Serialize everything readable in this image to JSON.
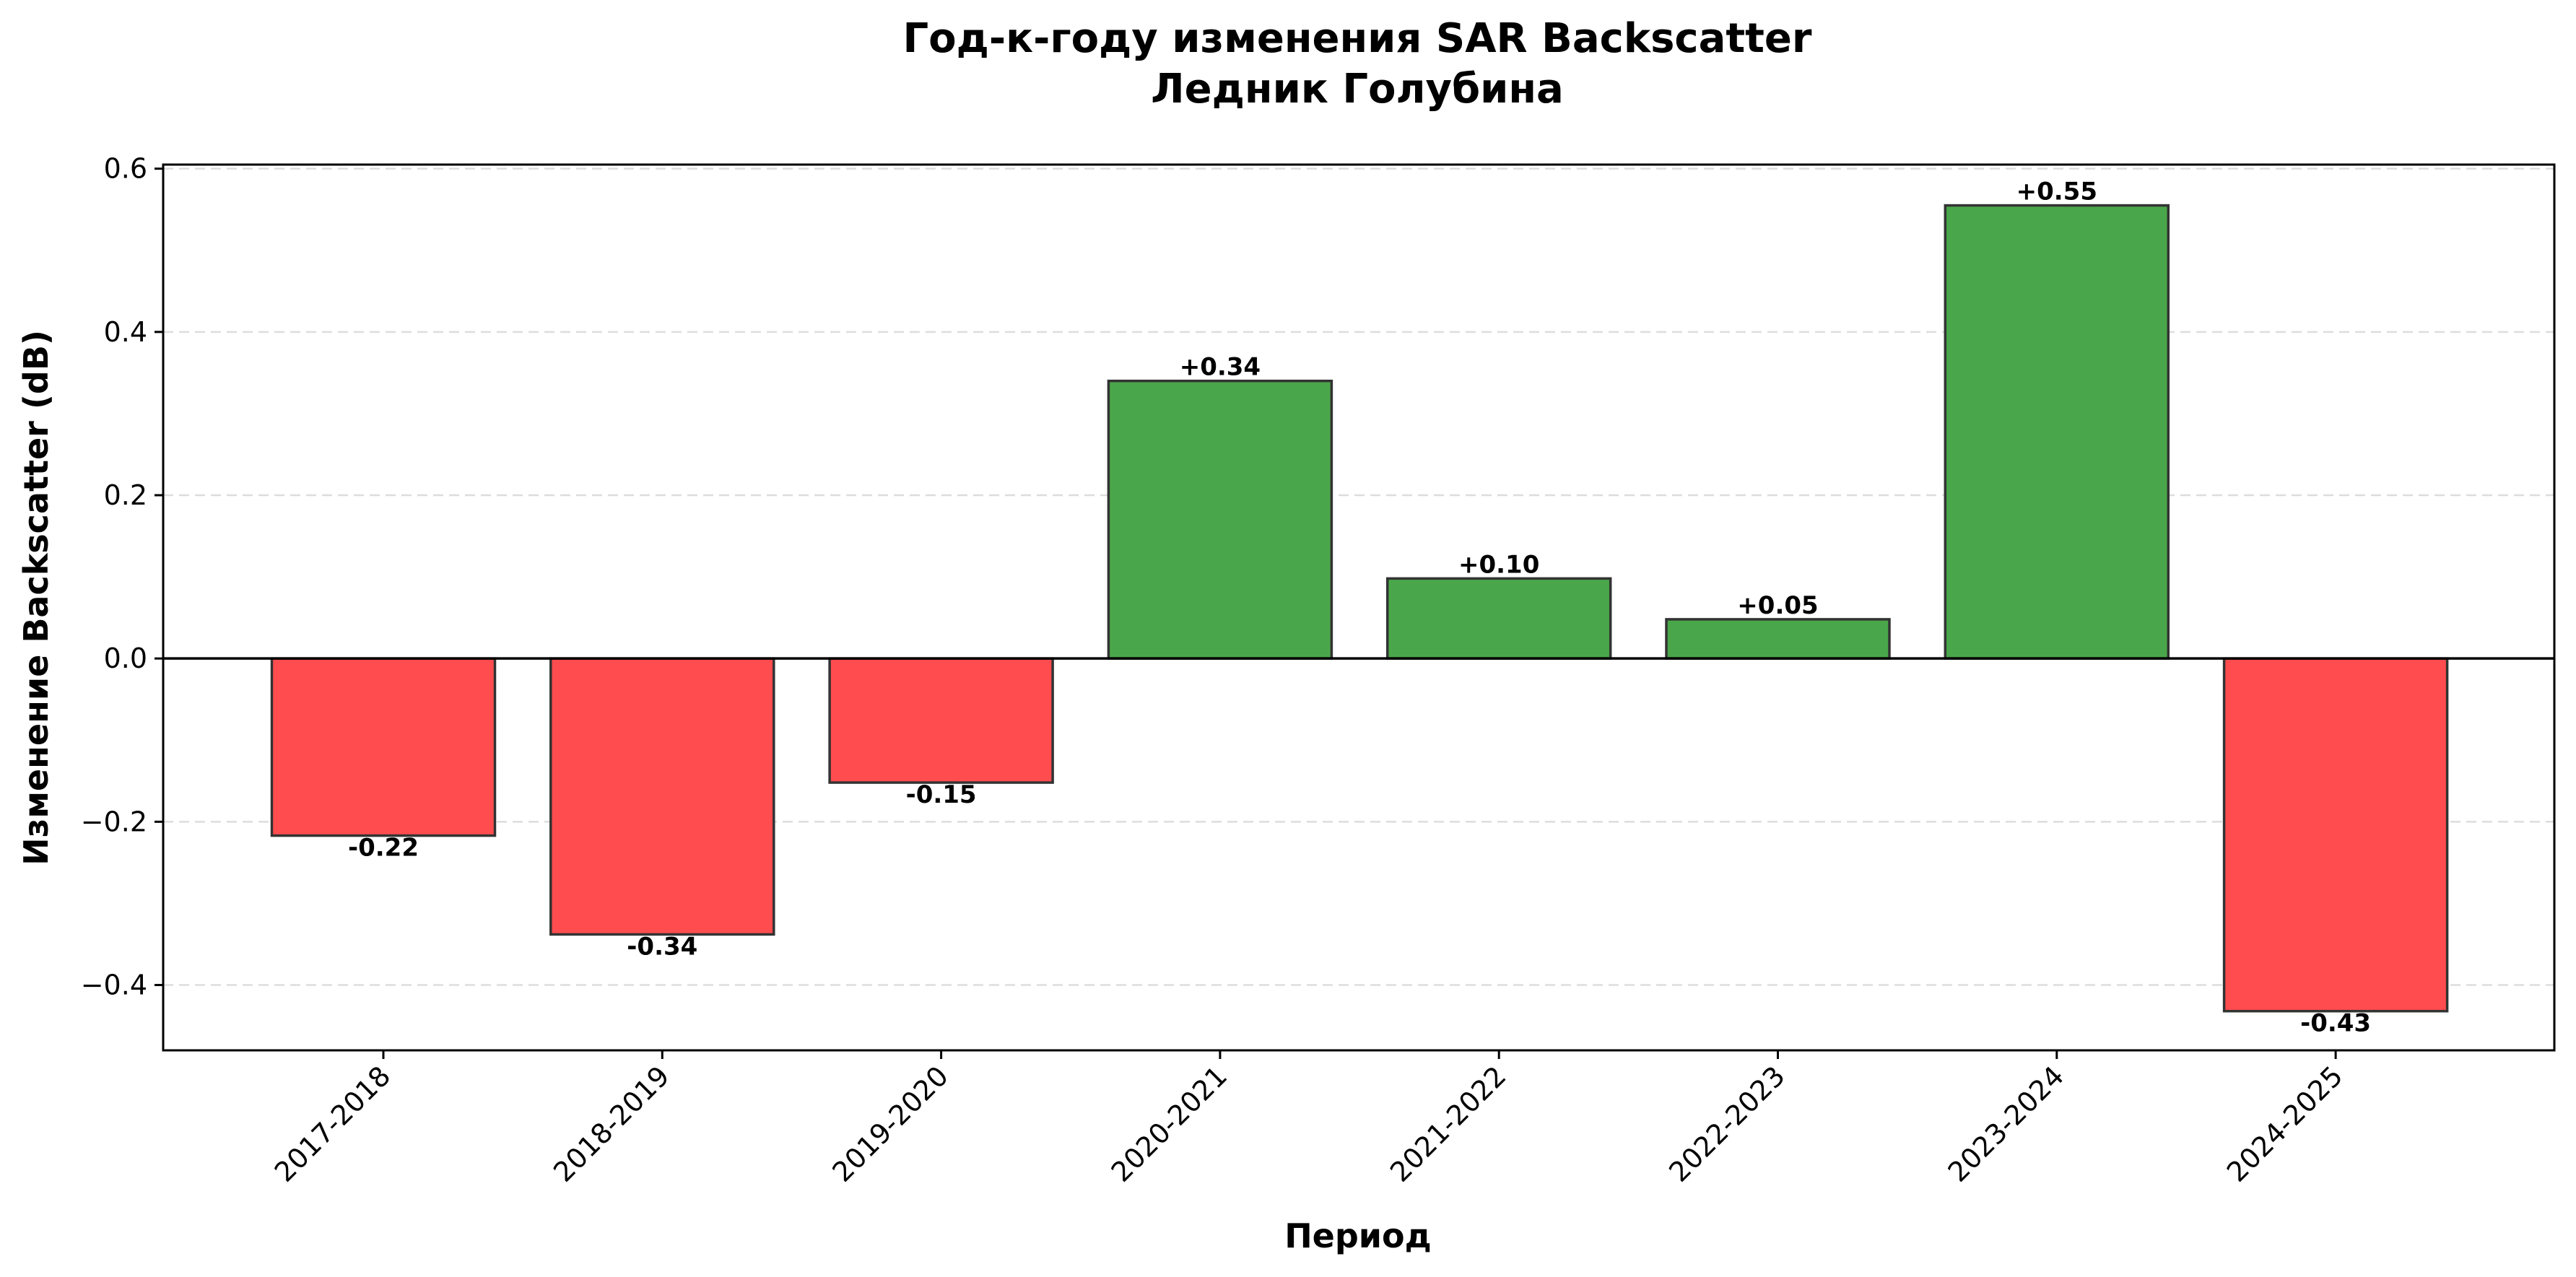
{
  "chart_data": {
    "type": "bar",
    "title": "Год-к-году изменения SAR Backscatter",
    "subtitle": "Ледник Голубина",
    "xlabel": "Период",
    "ylabel": "Изменение Backscatter (dB)",
    "categories": [
      "2017-2018",
      "2018-2019",
      "2019-2020",
      "2020-2021",
      "2021-2022",
      "2022-2023",
      "2023-2024",
      "2024-2025"
    ],
    "values": [
      -0.217,
      -0.338,
      -0.152,
      0.34,
      0.098,
      0.048,
      0.555,
      -0.432
    ],
    "data_labels": [
      "-0.22",
      "-0.34",
      "-0.15",
      "+0.34",
      "+0.10",
      "+0.05",
      "+0.55",
      "-0.43"
    ],
    "ylim": [
      -0.48,
      0.605
    ],
    "yticks": [
      -0.4,
      -0.2,
      0.0,
      0.2,
      0.4,
      0.6
    ],
    "ytick_labels": [
      "−0.4",
      "−0.2",
      "0.0",
      "0.2",
      "0.4",
      "0.6"
    ],
    "grid": "y-dashed",
    "colors": {
      "positive": "#4aa64a",
      "negative": "#ff4c4f",
      "edge": "#333333",
      "zero_line": "#000000",
      "grid": "#dddddd"
    }
  }
}
